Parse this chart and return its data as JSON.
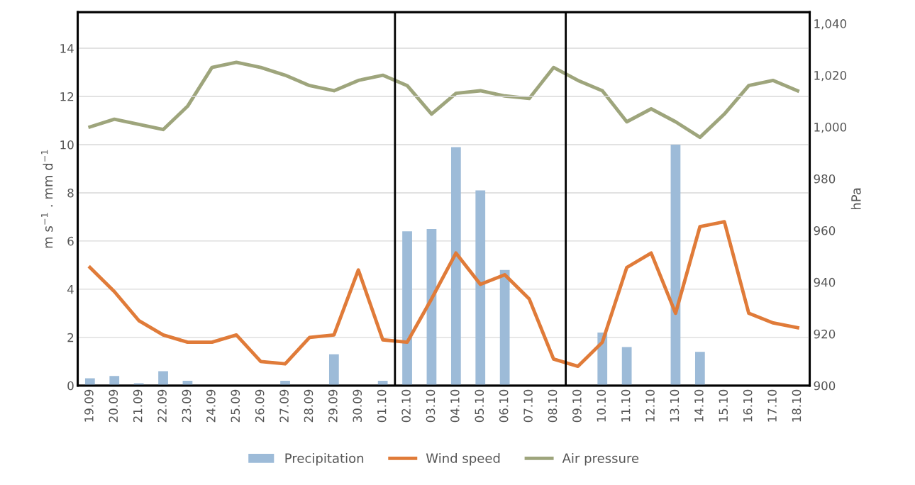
{
  "chart_data": {
    "type": "bar",
    "categories": [
      "19.09",
      "20.09",
      "21.09",
      "22.09",
      "23.09",
      "24.09",
      "25.09",
      "26.09",
      "27.09",
      "28.09",
      "29.09",
      "30.09",
      "01.10",
      "02.10",
      "03.10",
      "04.10",
      "05.10",
      "06.10",
      "07.10",
      "08.10",
      "09.10",
      "10.10",
      "11.10",
      "12.10",
      "13.10",
      "14.10",
      "15.10",
      "16.10",
      "17.10",
      "18.10"
    ],
    "series": [
      {
        "name": "Precipitation",
        "color": "#9dbbd8",
        "values": [
          0.3,
          0.4,
          0.1,
          0.6,
          0.2,
          0,
          0,
          0,
          0.2,
          0,
          1.3,
          0,
          0.2,
          6.4,
          6.5,
          9.9,
          8.1,
          4.8,
          0,
          0,
          0,
          2.2,
          1.6,
          0,
          10.0,
          1.4,
          0,
          0,
          0,
          0
        ]
      },
      {
        "name": "Wind speed",
        "type": "line",
        "color": "#e07b39",
        "values": [
          4.9,
          3.9,
          2.7,
          2.1,
          1.8,
          1.8,
          2.1,
          1.0,
          0.9,
          2.0,
          2.1,
          4.8,
          1.9,
          1.8,
          3.6,
          5.5,
          4.2,
          4.6,
          3.6,
          1.1,
          0.8,
          1.8,
          4.9,
          5.5,
          3.0,
          6.6,
          6.8,
          3.0,
          2.6,
          2.4
        ]
      },
      {
        "name": "Air pressure",
        "type": "line",
        "axis": "y2",
        "color": "#9ea57c",
        "values": [
          1000,
          1003,
          1001,
          999,
          1008,
          1023,
          1025,
          1023,
          1020,
          1016,
          1014,
          1018,
          1020,
          1016,
          1005,
          1013,
          1014,
          1012,
          1011,
          1023,
          1018,
          1014,
          1002,
          1007,
          1002,
          996,
          1005,
          1016,
          1018,
          1014
        ]
      }
    ],
    "ylabel": "m s$^{−1}$ . mm d$^{−1}$",
    "y2label": "hPa",
    "ylim": [
      0,
      15.5
    ],
    "yticks": [
      0,
      2,
      4,
      6,
      8,
      10,
      12,
      14
    ],
    "y2lim": [
      900,
      1044.4
    ],
    "y2ticks": [
      900,
      920,
      940,
      960,
      980,
      {
        "value": 1000,
        "label": "1,000"
      },
      {
        "value": 1020,
        "label": "1,020"
      },
      {
        "value": 1040,
        "label": "1,040"
      }
    ],
    "grid": "y",
    "legend": "bottom"
  }
}
